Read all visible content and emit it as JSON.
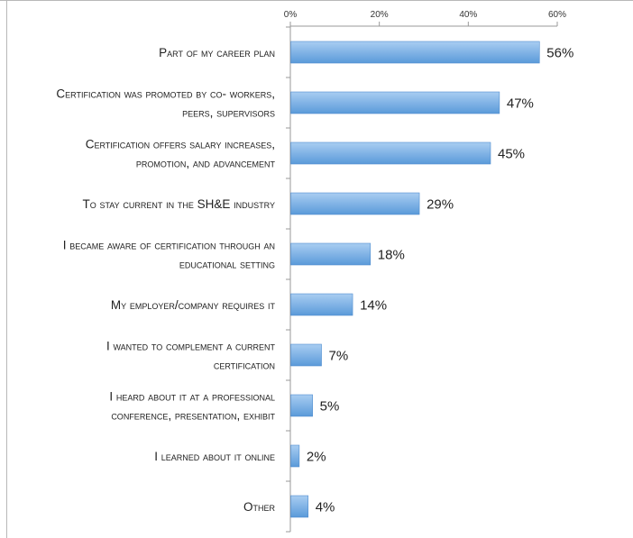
{
  "chart_data": {
    "type": "bar",
    "orientation": "horizontal",
    "title": "",
    "xlabel": "",
    "ylabel": "",
    "xlim": [
      0,
      60
    ],
    "ticks": [
      "0%",
      "20%",
      "40%",
      "60%"
    ],
    "tick_values": [
      0,
      20,
      40,
      60
    ],
    "axis_position": "top",
    "grid": false,
    "categories": [
      "Part of my career plan",
      "Certification was promoted by co- workers, peers, supervisors",
      "Certification offers salary increases, promotion, and advancement",
      "To stay current in the SH&E industry",
      "I became aware of certification through an educational setting",
      "My employer/company requires it",
      "I wanted to complement a current certification",
      "I heard about it at a professional conference, presentation, exhibit",
      "I learned about it online",
      "Other"
    ],
    "category_lines": [
      [
        "Part of my career plan"
      ],
      [
        "Certification was promoted by co- workers,",
        "peers, supervisors"
      ],
      [
        "Certification offers salary increases,",
        "promotion, and advancement"
      ],
      [
        "To stay current in the SH&E industry"
      ],
      [
        "I became aware of certification through an",
        "educational setting"
      ],
      [
        "My employer/company requires it"
      ],
      [
        "I wanted to complement a current",
        "certification"
      ],
      [
        "I heard about it at a professional",
        "conference, presentation, exhibit"
      ],
      [
        "I learned about it online"
      ],
      [
        "Other"
      ]
    ],
    "values": [
      56,
      47,
      45,
      29,
      18,
      14,
      7,
      5,
      2,
      4
    ],
    "data_labels": [
      "56%",
      "47%",
      "45%",
      "29%",
      "18%",
      "14%",
      "7%",
      "5%",
      "2%",
      "4%"
    ],
    "colors": {
      "bar_light": "#a9cdf2",
      "bar_dark": "#5a9ad9",
      "bar_edge": "#4f8dcf",
      "axis": "#9a9a9a"
    }
  }
}
